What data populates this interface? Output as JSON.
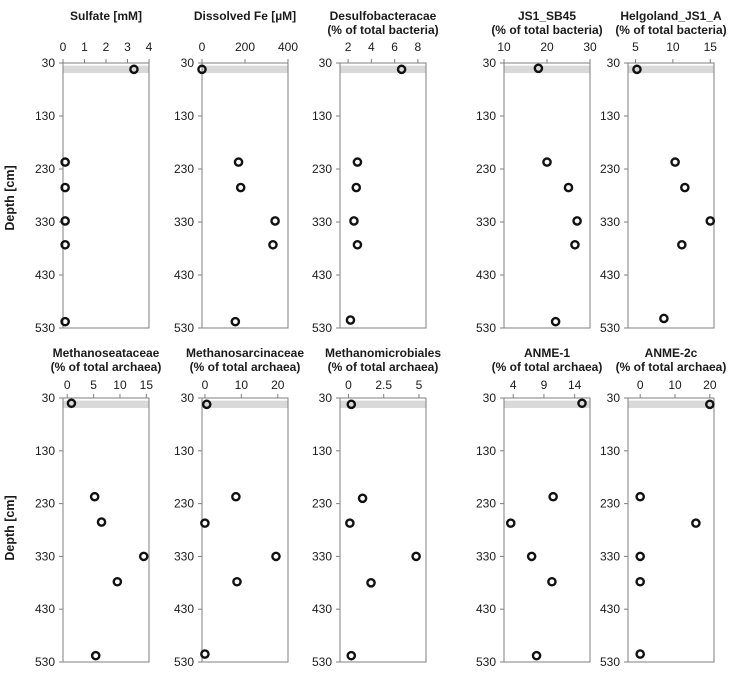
{
  "figure": {
    "ylabel": "Depth [cm]"
  },
  "colors": {
    "band": "#d9d9d9",
    "axis": "#7f7f7f",
    "marker": "#111111",
    "text": "#1a1a1a"
  },
  "chart_data": [
    {
      "type": "scatter",
      "title": [
        "Sulfate [mM]"
      ],
      "xlim": [
        0,
        4
      ],
      "xticks": [
        "0",
        "1",
        "2",
        "3",
        "4"
      ],
      "ylim": [
        30,
        530
      ],
      "yticks": [
        "30",
        "130",
        "230",
        "330",
        "430",
        "530"
      ],
      "band": [
        35,
        49
      ],
      "points": [
        {
          "x": 3.3,
          "y": 42
        },
        {
          "x": 0.1,
          "y": 217
        },
        {
          "x": 0.1,
          "y": 265
        },
        {
          "x": 0.1,
          "y": 328
        },
        {
          "x": 0.1,
          "y": 373
        },
        {
          "x": 0.1,
          "y": 518
        }
      ]
    },
    {
      "type": "scatter",
      "title": [
        "Dissolved Fe [µM]"
      ],
      "xlim": [
        0,
        400
      ],
      "xticks": [
        "0",
        "200",
        "400"
      ],
      "ylim": [
        30,
        530
      ],
      "yticks": [
        "30",
        "130",
        "230",
        "330",
        "430",
        "530"
      ],
      "band": [
        35,
        49
      ],
      "points": [
        {
          "x": 0,
          "y": 42
        },
        {
          "x": 170,
          "y": 217
        },
        {
          "x": 180,
          "y": 265
        },
        {
          "x": 340,
          "y": 328
        },
        {
          "x": 330,
          "y": 373
        },
        {
          "x": 155,
          "y": 518
        }
      ]
    },
    {
      "type": "scatter",
      "title": [
        "Desulfobacteracae",
        "(% of total bacteria)"
      ],
      "xlim": [
        1.3,
        8.7
      ],
      "xticks": [
        "2",
        "4",
        "6",
        "8"
      ],
      "ylim": [
        30,
        530
      ],
      "yticks": [
        "30",
        "130",
        "230",
        "330",
        "430",
        "530"
      ],
      "band": [
        35,
        49
      ],
      "points": [
        {
          "x": 6.6,
          "y": 42
        },
        {
          "x": 2.8,
          "y": 217
        },
        {
          "x": 2.7,
          "y": 265
        },
        {
          "x": 2.5,
          "y": 328
        },
        {
          "x": 2.8,
          "y": 373
        },
        {
          "x": 2.2,
          "y": 515
        }
      ]
    },
    {
      "type": "scatter",
      "title": [
        "JS1_SB45",
        "(% of total bacteria)"
      ],
      "xlim": [
        10,
        30
      ],
      "xticks": [
        "10",
        "20",
        "30"
      ],
      "ylim": [
        30,
        530
      ],
      "yticks": [
        "30",
        "130",
        "230",
        "330",
        "430",
        "530"
      ],
      "band": [
        35,
        49
      ],
      "points": [
        {
          "x": 18,
          "y": 40
        },
        {
          "x": 20,
          "y": 217
        },
        {
          "x": 25,
          "y": 265
        },
        {
          "x": 27,
          "y": 328
        },
        {
          "x": 26.5,
          "y": 373
        },
        {
          "x": 22,
          "y": 518
        }
      ]
    },
    {
      "type": "scatter",
      "title": [
        "Helgoland_JS1_A",
        "(% of total bacteria)"
      ],
      "xlim": [
        4,
        15.5
      ],
      "xticks": [
        "5",
        "10",
        "15"
      ],
      "ylim": [
        30,
        530
      ],
      "yticks": [
        "30",
        "130",
        "230",
        "330",
        "430",
        "530"
      ],
      "band": [
        35,
        49
      ],
      "points": [
        {
          "x": 5.2,
          "y": 42
        },
        {
          "x": 10.3,
          "y": 217
        },
        {
          "x": 11.6,
          "y": 265
        },
        {
          "x": 15,
          "y": 328
        },
        {
          "x": 11.2,
          "y": 373
        },
        {
          "x": 8.8,
          "y": 512
        }
      ]
    },
    {
      "type": "scatter",
      "title": [
        "Methanoseataceae",
        "(% of total archaea)"
      ],
      "xlim": [
        -0.8,
        15.5
      ],
      "xticks": [
        "0",
        "5",
        "10",
        "15"
      ],
      "ylim": [
        30,
        530
      ],
      "yticks": [
        "30",
        "130",
        "230",
        "330",
        "430",
        "530"
      ],
      "band": [
        35,
        49
      ],
      "points": [
        {
          "x": 0.8,
          "y": 40
        },
        {
          "x": 5.2,
          "y": 217
        },
        {
          "x": 6.5,
          "y": 265
        },
        {
          "x": 14.5,
          "y": 330
        },
        {
          "x": 9.5,
          "y": 378
        },
        {
          "x": 5.4,
          "y": 518
        }
      ]
    },
    {
      "type": "scatter",
      "title": [
        "Methanosarcinaceae",
        "(% of total archaea)"
      ],
      "xlim": [
        -0.8,
        22.8
      ],
      "xticks": [
        "0",
        "10",
        "20"
      ],
      "ylim": [
        30,
        530
      ],
      "yticks": [
        "30",
        "130",
        "230",
        "330",
        "430",
        "530"
      ],
      "band": [
        35,
        49
      ],
      "points": [
        {
          "x": 0.5,
          "y": 42
        },
        {
          "x": 8.5,
          "y": 217
        },
        {
          "x": 0,
          "y": 267
        },
        {
          "x": 19.5,
          "y": 330
        },
        {
          "x": 8.8,
          "y": 378
        },
        {
          "x": 0,
          "y": 515
        }
      ]
    },
    {
      "type": "scatter",
      "title": [
        "Methanomicrobiales",
        "(% of total archaea)"
      ],
      "xlim": [
        -0.6,
        5.5
      ],
      "xticks": [
        "0",
        "2.5",
        "5"
      ],
      "ylim": [
        30,
        530
      ],
      "yticks": [
        "30",
        "130",
        "230",
        "330",
        "430",
        "530"
      ],
      "band": [
        35,
        49
      ],
      "points": [
        {
          "x": 0.2,
          "y": 42
        },
        {
          "x": 1.0,
          "y": 220
        },
        {
          "x": 0.1,
          "y": 267
        },
        {
          "x": 4.8,
          "y": 330
        },
        {
          "x": 1.6,
          "y": 380
        },
        {
          "x": 0.2,
          "y": 518
        }
      ]
    },
    {
      "type": "scatter",
      "title": [
        "ANME-1",
        "(% of total archaea)"
      ],
      "xlim": [
        2.5,
        16.5
      ],
      "xticks": [
        "4",
        "9",
        "14"
      ],
      "ylim": [
        30,
        530
      ],
      "yticks": [
        "30",
        "130",
        "230",
        "330",
        "430",
        "530"
      ],
      "band": [
        35,
        49
      ],
      "points": [
        {
          "x": 15.2,
          "y": 40
        },
        {
          "x": 10.5,
          "y": 217
        },
        {
          "x": 3.6,
          "y": 267
        },
        {
          "x": 7.0,
          "y": 330
        },
        {
          "x": 10.3,
          "y": 378
        },
        {
          "x": 7.8,
          "y": 518
        }
      ]
    },
    {
      "type": "scatter",
      "title": [
        "ANME-2c",
        "(% of total archaea)"
      ],
      "xlim": [
        -3.5,
        21.2
      ],
      "xticks": [
        "0",
        "10",
        "20"
      ],
      "ylim": [
        30,
        530
      ],
      "yticks": [
        "30",
        "130",
        "230",
        "330",
        "430",
        "530"
      ],
      "band": [
        35,
        49
      ],
      "points": [
        {
          "x": 20,
          "y": 42
        },
        {
          "x": 0,
          "y": 217
        },
        {
          "x": 16,
          "y": 267
        },
        {
          "x": 0,
          "y": 330
        },
        {
          "x": 0,
          "y": 378
        },
        {
          "x": 0,
          "y": 515
        }
      ]
    }
  ]
}
